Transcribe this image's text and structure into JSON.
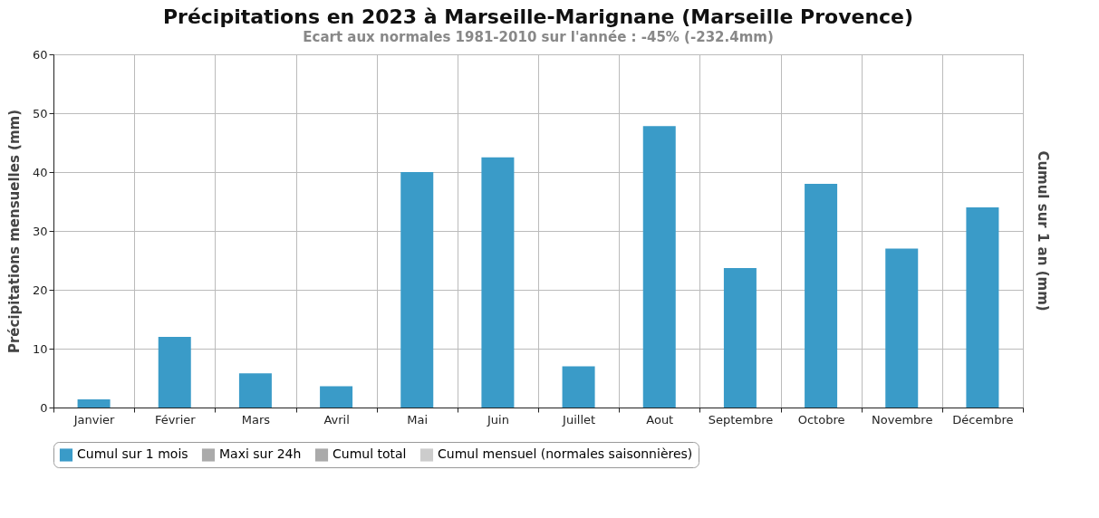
{
  "chart_data": {
    "type": "bar",
    "title": "Précipitations en 2023 à Marseille-Marignane (Marseille Provence)",
    "subtitle": "Ecart aux normales 1981-2010 sur l'année : -45% (-232.4mm)",
    "ylabel": "Précipitations mensuelles (mm)",
    "y2label": "Cumul sur 1 an (mm)",
    "categories": [
      "Janvier",
      "Février",
      "Mars",
      "Avril",
      "Mai",
      "Juin",
      "Juillet",
      "Aout",
      "Septembre",
      "Octobre",
      "Novembre",
      "Décembre"
    ],
    "series": [
      {
        "name": "Cumul sur 1 mois",
        "color": "#3a9bc8",
        "values": [
          1.4,
          12,
          5.8,
          3.6,
          40,
          42.5,
          7,
          47.8,
          23.7,
          38,
          27,
          34
        ]
      },
      {
        "name": "Maxi sur 24h",
        "color": "#aaaaaa",
        "values": [
          null,
          null,
          null,
          null,
          null,
          null,
          null,
          null,
          null,
          null,
          null,
          null
        ]
      },
      {
        "name": "Cumul total",
        "color": "#aaaaaa",
        "values": [
          null,
          null,
          null,
          null,
          null,
          null,
          null,
          null,
          null,
          null,
          null,
          null
        ]
      },
      {
        "name": "Cumul mensuel (normales saisonnières)",
        "color": "#cccccc",
        "values": [
          null,
          null,
          null,
          null,
          null,
          null,
          null,
          null,
          null,
          null,
          null,
          null
        ]
      }
    ],
    "ylim": [
      0,
      60
    ],
    "yticks": [
      0,
      10,
      20,
      30,
      40,
      50,
      60
    ],
    "grid": true,
    "legend": "bottom"
  }
}
